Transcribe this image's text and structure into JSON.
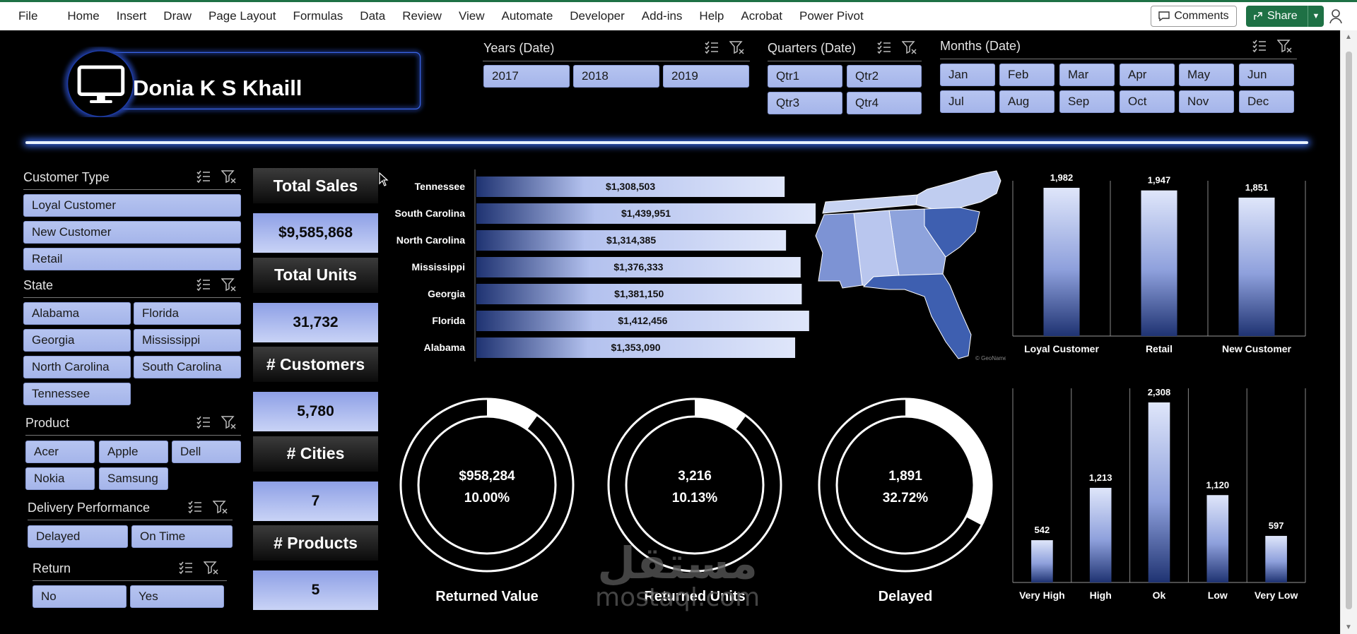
{
  "ribbon": {
    "menu": [
      "File",
      "Home",
      "Insert",
      "Draw",
      "Page Layout",
      "Formulas",
      "Data",
      "Review",
      "View",
      "Automate",
      "Developer",
      "Add-ins",
      "Help",
      "Acrobat",
      "Power Pivot"
    ],
    "comments_label": "Comments",
    "share_label": "Share"
  },
  "header": {
    "name": "Donia K S Khaill"
  },
  "slicers": {
    "years": {
      "title": "Years (Date)",
      "items": [
        "2017",
        "2018",
        "2019"
      ]
    },
    "quarters": {
      "title": "Quarters (Date)",
      "items": [
        "Qtr1",
        "Qtr2",
        "Qtr3",
        "Qtr4"
      ]
    },
    "months": {
      "title": "Months (Date)",
      "items": [
        "Jan",
        "Feb",
        "Mar",
        "Apr",
        "May",
        "Jun",
        "Jul",
        "Aug",
        "Sep",
        "Oct",
        "Nov",
        "Dec"
      ]
    },
    "customer_type": {
      "title": "Customer Type",
      "items": [
        "Loyal Customer",
        "New Customer",
        "Retail"
      ]
    },
    "state": {
      "title": "State",
      "items": [
        "Alabama",
        "Florida",
        "Georgia",
        "Mississippi",
        "North Carolina",
        "South Carolina",
        "Tennessee"
      ]
    },
    "product": {
      "title": "Product",
      "items": [
        "Acer",
        "Apple",
        "Dell",
        "Nokia",
        "Samsung"
      ]
    },
    "delivery": {
      "title": "Delivery Performance",
      "items": [
        "Delayed",
        "On Time"
      ]
    },
    "return": {
      "title": "Return",
      "items": [
        "No",
        "Yes"
      ]
    }
  },
  "kpis": [
    {
      "label": "Total Sales",
      "value": "$9,585,868"
    },
    {
      "label": "Total Units",
      "value": "31,732"
    },
    {
      "label": "# Customers",
      "value": "5,780"
    },
    {
      "label": "# Cities",
      "value": "7"
    },
    {
      "label": "# Products",
      "value": "5"
    }
  ],
  "map": {
    "credit": "© GeoNames"
  },
  "donuts": [
    {
      "label": "Returned Value",
      "line1": "$958,284",
      "line2": "10.00%",
      "fraction": 0.1
    },
    {
      "label": "Returned Units",
      "line1": "3,216",
      "line2": "10.13%",
      "fraction": 0.1013
    },
    {
      "label": "Delayed",
      "line1": "1,891",
      "line2": "32.72%",
      "fraction": 0.3272
    }
  ],
  "watermark": {
    "arabic": "مستقل",
    "latin": "mostaql.com"
  },
  "chart_data": [
    {
      "type": "bar",
      "orientation": "horizontal",
      "categories": [
        "Tennessee",
        "South Carolina",
        "North Carolina",
        "Mississippi",
        "Georgia",
        "Florida",
        "Alabama"
      ],
      "values": [
        1308503,
        1439951,
        1314385,
        1376333,
        1381150,
        1412456,
        1353090
      ],
      "labels": [
        "$1,308,503",
        "$1,439,951",
        "$1,314,385",
        "$1,376,333",
        "$1,381,150",
        "$1,412,456",
        "$1,353,090"
      ]
    },
    {
      "type": "bar",
      "categories": [
        "Loyal Customer",
        "Retail",
        "New Customer"
      ],
      "values": [
        1982,
        1947,
        1851
      ],
      "labels": [
        "1,982",
        "1,947",
        "1,851"
      ]
    },
    {
      "type": "bar",
      "categories": [
        "Very High",
        "High",
        "Ok",
        "Low",
        "Very Low"
      ],
      "values": [
        542,
        1213,
        2308,
        1120,
        597
      ],
      "labels": [
        "542",
        "1,213",
        "2,308",
        "1,120",
        "597"
      ]
    }
  ],
  "colors": {
    "chip": "#aebcee",
    "bar_light": "#dfe6fa",
    "bar_dark": "#1f3372",
    "glow": "#3b6cf0",
    "excel_green": "#1e7145"
  }
}
